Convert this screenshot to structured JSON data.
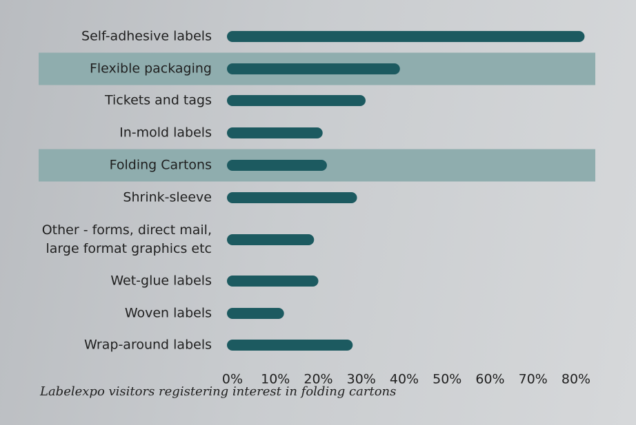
{
  "caption": "Labelexpo visitors registering interest in folding cartons",
  "colors": {
    "bar": "#1c5a60",
    "highlight_band": "#8fadae"
  },
  "chart_data": {
    "type": "bar",
    "orientation": "horizontal",
    "title": "",
    "xlabel": "",
    "ylabel": "",
    "xlim": [
      0,
      80
    ],
    "categories": [
      [
        "Self-adhesive labels"
      ],
      [
        "Flexible packaging"
      ],
      [
        "Tickets and tags"
      ],
      [
        "In-mold labels"
      ],
      [
        "Folding Cartons"
      ],
      [
        "Shrink-sleeve"
      ],
      [
        "Other - forms, direct mail,",
        "large format graphics etc"
      ],
      [
        "Wet-glue labels"
      ],
      [
        "Woven labels"
      ],
      [
        "Wrap-around labels"
      ]
    ],
    "values": [
      82,
      39,
      31,
      21,
      22,
      29,
      19,
      20,
      12,
      28
    ],
    "highlighted": [
      "Flexible packaging",
      "Folding Cartons"
    ],
    "ticks": [
      "0%",
      "10%",
      "20%",
      "30%",
      "40%",
      "50%",
      "60%",
      "70%",
      "80%"
    ],
    "grid": false,
    "legend": "none"
  }
}
